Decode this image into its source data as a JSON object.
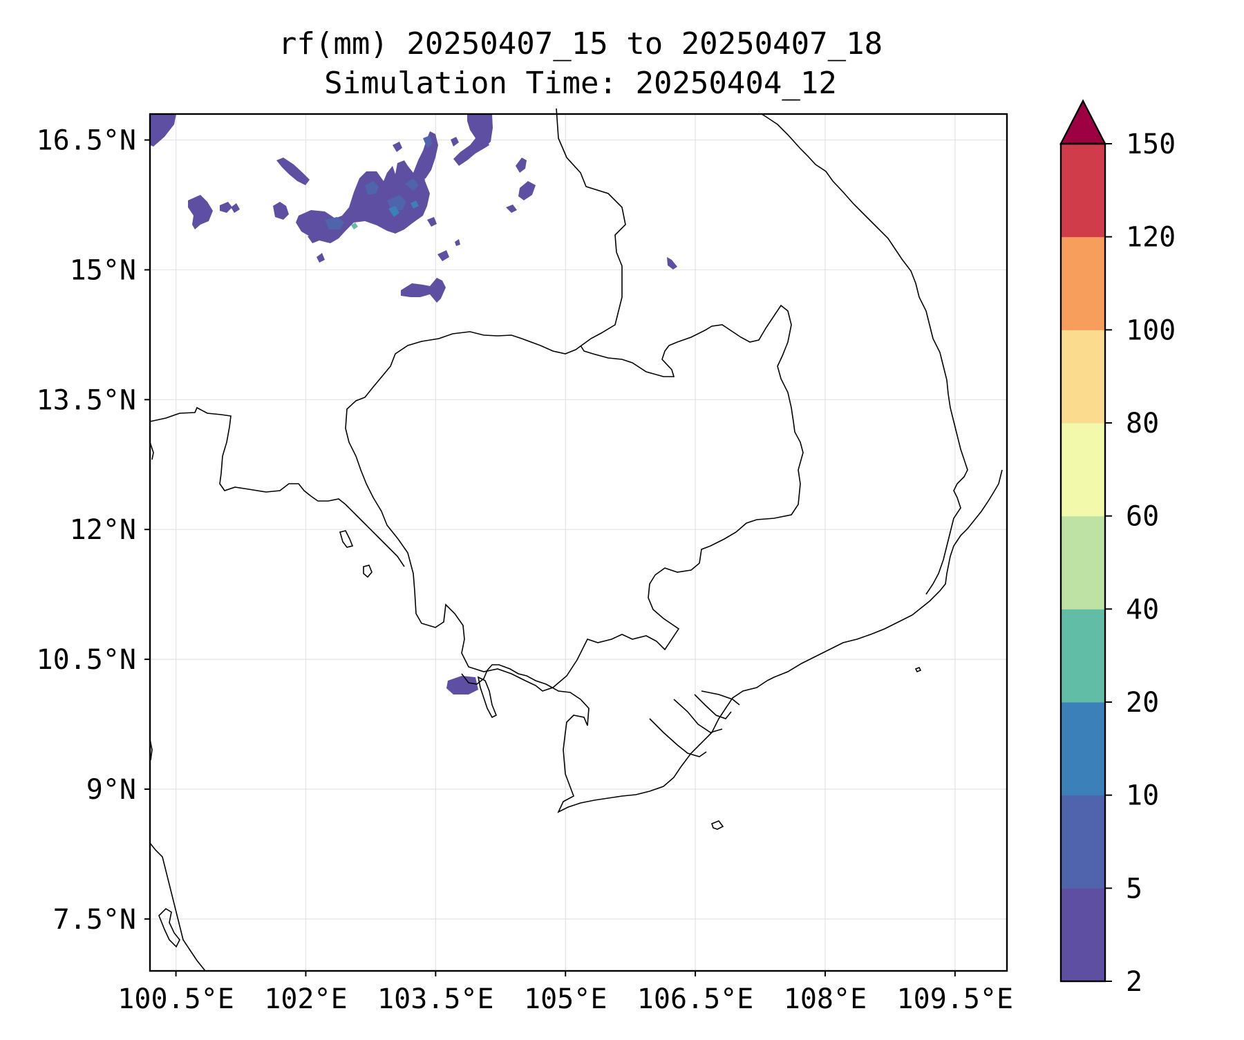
{
  "title": {
    "line1": "rf(mm) 20250407_15 to 20250407_18",
    "line2": "Simulation Time: 20250404_12"
  },
  "map": {
    "lon_range": [
      100.2,
      110.1
    ],
    "lat_range": [
      6.9,
      16.8
    ],
    "x_ticks": [
      {
        "value": 100.5,
        "label": "100.5°E"
      },
      {
        "value": 102.0,
        "label": "102°E"
      },
      {
        "value": 103.5,
        "label": "103.5°E"
      },
      {
        "value": 105.0,
        "label": "105°E"
      },
      {
        "value": 106.5,
        "label": "106.5°E"
      },
      {
        "value": 108.0,
        "label": "108°E"
      },
      {
        "value": 109.5,
        "label": "109.5°E"
      }
    ],
    "y_ticks": [
      {
        "value": 16.5,
        "label": "16.5°N"
      },
      {
        "value": 15.0,
        "label": "15°N"
      },
      {
        "value": 13.5,
        "label": "13.5°N"
      },
      {
        "value": 12.0,
        "label": "12°N"
      },
      {
        "value": 10.5,
        "label": "10.5°N"
      },
      {
        "value": 9.0,
        "label": "9°N"
      },
      {
        "value": 7.5,
        "label": "7.5°N"
      }
    ],
    "gridlines": true
  },
  "colorbar": {
    "extend": "max",
    "extend_color": "#9e0142",
    "levels": [
      {
        "value": 2,
        "label": "2"
      },
      {
        "value": 5,
        "label": "5"
      },
      {
        "value": 10,
        "label": "10"
      },
      {
        "value": 20,
        "label": "20"
      },
      {
        "value": 40,
        "label": "40"
      },
      {
        "value": 60,
        "label": "60"
      },
      {
        "value": 80,
        "label": "80"
      },
      {
        "value": 100,
        "label": "100"
      },
      {
        "value": 120,
        "label": "120"
      },
      {
        "value": 150,
        "label": "150"
      }
    ],
    "colors": [
      "#5e4fa2",
      "#4f64ad",
      "#3b80b9",
      "#62bda6",
      "#bde2a3",
      "#f2f9ab",
      "#fbdc8e",
      "#f89e5c",
      "#d13c4b"
    ]
  }
}
